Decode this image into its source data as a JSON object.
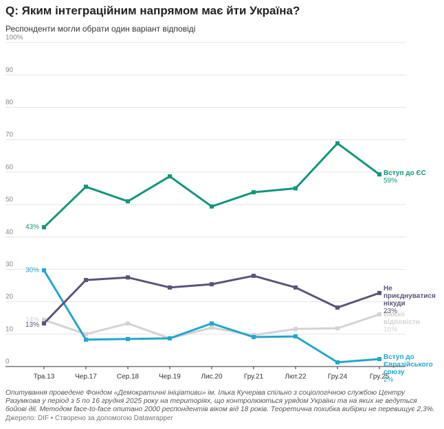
{
  "title": "Q: Яким інтеграційним напрямом має йти Україна?",
  "subtitle": "Респонденти могли обрати один варіант відповіді",
  "notes": "Опитування проведене Фондом «Демократичні ініціативи» ім. Ілька Кучеріва спільно з соціологічною службою Центру Разумкова у період з 5 по 16 грудня 2025 року на територіях, що контролюються урядом України та на яких не ведуться бойові дії. Методом face-to-face опитано 2000 респондентів віком від 18 років. Теоретична похибка вибірки не перевищує 2,3%.",
  "source": "Джерело: DIF • Створено за допомогою Datawrapper",
  "chart_data": {
    "type": "line",
    "categories": [
      "Тра.13",
      "Чер.17",
      "Сер.18",
      "Чер.19",
      "Лис.20",
      "Гру.21",
      "Лют.22",
      "Гру.24",
      "Гру.25"
    ],
    "ylim": [
      0,
      100
    ],
    "yticks": [
      0,
      10,
      20,
      30,
      40,
      50,
      60,
      70,
      80,
      90,
      {
        "value": 100,
        "label": "100%"
      }
    ],
    "grid": true,
    "series": [
      {
        "name": "Важко відповісти",
        "color": "#d3d3d3",
        "values": [
          14.4,
          10,
          13.3,
          8.7,
          12,
          9.7,
          11.6,
          11.8,
          16.1
        ],
        "value_labels": [
          "14%",
          null,
          null,
          null,
          null,
          null,
          null,
          null,
          "16%"
        ]
      },
      {
        "name": "Вступ до Євразійського союзу",
        "color": "#23a6cc",
        "values": [
          29.7,
          8.3,
          8.5,
          8.7,
          13.3,
          9.1,
          9.3,
          1.3,
          2.3
        ],
        "value_labels": [
          "30%",
          null,
          null,
          null,
          null,
          null,
          null,
          null,
          "2%"
        ]
      },
      {
        "name": "Не приєднуватися нікуди",
        "color": "#5b5478",
        "values": [
          13.3,
          26.7,
          27.5,
          24.4,
          25.4,
          28,
          24.4,
          18.2,
          22.7
        ],
        "value_labels": [
          "13%",
          null,
          null,
          null,
          null,
          null,
          null,
          null,
          "23%"
        ]
      },
      {
        "name": "Вступ до ЄС",
        "color": "#11967a",
        "values": [
          43,
          55.5,
          51,
          58.7,
          49.4,
          53.8,
          55,
          68.9,
          59.3
        ],
        "value_labels": [
          "43%",
          null,
          null,
          null,
          null,
          null,
          null,
          null,
          "59%"
        ]
      }
    ]
  }
}
